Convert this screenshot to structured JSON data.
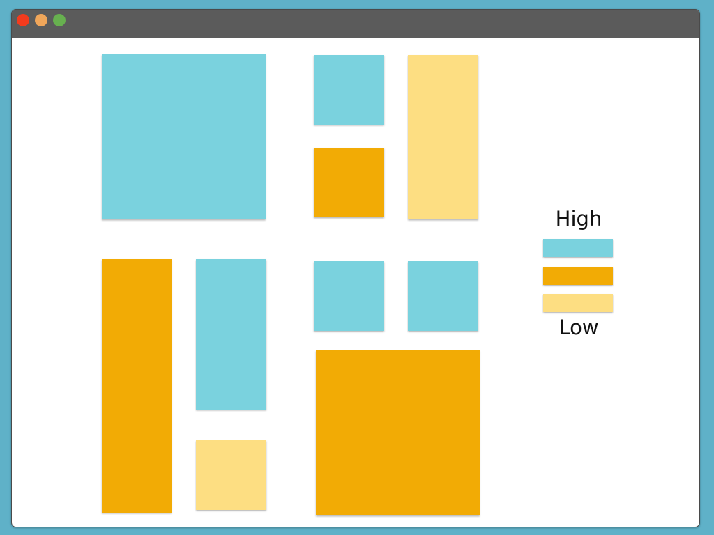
{
  "window": {
    "controls": [
      {
        "name": "close",
        "color": "#f33b1d"
      },
      {
        "name": "minimize",
        "color": "#f0a65a"
      },
      {
        "name": "maximize",
        "color": "#67b04f"
      }
    ]
  },
  "palette": {
    "high": "#7ad2de",
    "mid": "#f2ab05",
    "low": "#fdde82"
  },
  "tiles": [
    {
      "id": "a",
      "level": "high"
    },
    {
      "id": "b",
      "level": "high"
    },
    {
      "id": "c",
      "level": "mid"
    },
    {
      "id": "d",
      "level": "low"
    },
    {
      "id": "e",
      "level": "mid"
    },
    {
      "id": "f",
      "level": "high"
    },
    {
      "id": "g",
      "level": "low"
    },
    {
      "id": "h",
      "level": "high"
    },
    {
      "id": "i",
      "level": "high"
    },
    {
      "id": "j",
      "level": "mid"
    }
  ],
  "legend": {
    "top_label": "High",
    "bottom_label": "Low",
    "levels": [
      "high",
      "mid",
      "low"
    ]
  }
}
